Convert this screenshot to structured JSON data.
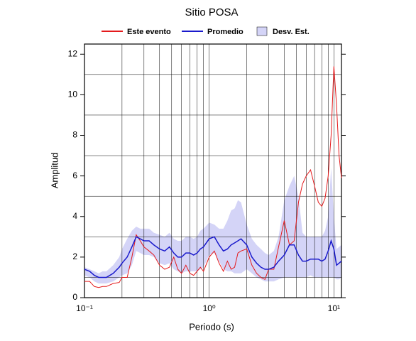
{
  "chart_data": {
    "type": "line",
    "title": "Sitio POSA",
    "xlabel": "Periodo (s)",
    "ylabel": "Amplitud",
    "xscale": "log",
    "xlim": [
      0.1,
      11.5
    ],
    "ylim": [
      0,
      12.5
    ],
    "xticks": [
      {
        "value": 0.1,
        "label": "10⁻¹"
      },
      {
        "value": 1,
        "label": "10⁰"
      },
      {
        "value": 10,
        "label": "10¹"
      }
    ],
    "minor_xticks": [
      0.2,
      0.3,
      0.4,
      0.5,
      0.6,
      0.7,
      0.8,
      0.9,
      2,
      3,
      4,
      5,
      6,
      7,
      8,
      9
    ],
    "yticks": [
      0,
      2,
      4,
      6,
      8,
      10,
      12
    ],
    "minor_yticks": [
      1,
      3,
      5,
      7,
      9,
      11
    ],
    "grid": true,
    "legend": "top",
    "x": [
      0.1,
      0.11,
      0.12,
      0.13,
      0.14,
      0.15,
      0.17,
      0.19,
      0.2,
      0.22,
      0.24,
      0.26,
      0.28,
      0.3,
      0.33,
      0.36,
      0.4,
      0.44,
      0.48,
      0.52,
      0.56,
      0.6,
      0.65,
      0.7,
      0.75,
      0.8,
      0.85,
      0.9,
      1.0,
      1.1,
      1.2,
      1.3,
      1.4,
      1.5,
      1.6,
      1.7,
      1.8,
      2.0,
      2.2,
      2.4,
      2.6,
      2.8,
      3.0,
      3.3,
      3.6,
      4.0,
      4.4,
      4.8,
      5.2,
      5.6,
      6.0,
      6.5,
      7.0,
      7.5,
      8.0,
      8.5,
      9.0,
      9.5,
      10.0,
      10.5,
      11.0,
      11.5
    ],
    "series": [
      {
        "name": "Este evento",
        "color": "#e41a1c",
        "values": [
          0.8,
          0.8,
          0.55,
          0.5,
          0.55,
          0.55,
          0.7,
          0.75,
          1.0,
          1.0,
          2.0,
          3.1,
          2.8,
          2.5,
          2.3,
          2.1,
          1.6,
          1.4,
          1.5,
          2.0,
          1.4,
          1.2,
          1.6,
          1.2,
          1.1,
          1.3,
          1.5,
          1.3,
          2.0,
          2.3,
          1.7,
          1.3,
          1.8,
          1.4,
          1.5,
          2.2,
          2.3,
          2.4,
          1.6,
          1.2,
          1.0,
          0.9,
          1.4,
          1.4,
          2.5,
          3.8,
          2.6,
          2.8,
          4.7,
          5.6,
          6.0,
          6.3,
          5.5,
          4.7,
          4.5,
          4.9,
          6.0,
          8.0,
          11.4,
          9.5,
          7.0,
          5.9
        ]
      },
      {
        "name": "Promedio",
        "color": "#1a1acc",
        "values": [
          1.4,
          1.3,
          1.1,
          1.0,
          1.0,
          1.0,
          1.2,
          1.5,
          1.7,
          2.0,
          2.5,
          3.0,
          2.9,
          2.8,
          2.8,
          2.6,
          2.4,
          2.3,
          2.5,
          2.2,
          2.0,
          2.0,
          2.2,
          2.2,
          2.1,
          2.2,
          2.4,
          2.5,
          2.9,
          3.0,
          2.6,
          2.3,
          2.4,
          2.6,
          2.7,
          2.8,
          2.9,
          2.6,
          2.0,
          1.7,
          1.5,
          1.4,
          1.4,
          1.5,
          1.8,
          2.1,
          2.6,
          2.6,
          2.1,
          1.8,
          1.8,
          1.9,
          1.9,
          1.9,
          1.8,
          1.9,
          2.3,
          2.8,
          2.4,
          1.6,
          1.7,
          1.8
        ]
      },
      {
        "name": "Desv. Est.",
        "color": "#d4d4f7",
        "upper": [
          1.5,
          1.4,
          1.3,
          1.2,
          1.3,
          1.3,
          1.6,
          2.0,
          2.4,
          2.9,
          3.3,
          3.5,
          3.4,
          3.4,
          3.4,
          3.2,
          3.1,
          3.0,
          3.2,
          2.9,
          2.8,
          2.8,
          3.0,
          3.0,
          2.9,
          3.0,
          3.3,
          3.4,
          3.7,
          3.6,
          3.4,
          3.4,
          3.8,
          4.3,
          4.4,
          4.8,
          4.7,
          3.6,
          2.9,
          2.6,
          2.4,
          2.2,
          2.1,
          2.3,
          3.0,
          4.8,
          5.5,
          6.0,
          5.0,
          3.2,
          3.0,
          3.0,
          3.0,
          3.0,
          3.0,
          3.3,
          4.0,
          6.4,
          4.0,
          2.4,
          2.5,
          2.6
        ],
        "lower": [
          1.1,
          1.0,
          0.8,
          0.7,
          0.7,
          0.7,
          0.8,
          1.0,
          1.1,
          1.2,
          1.6,
          2.3,
          2.2,
          2.1,
          2.1,
          2.0,
          1.7,
          1.6,
          1.7,
          1.4,
          1.3,
          1.2,
          1.3,
          1.3,
          1.3,
          1.3,
          1.4,
          1.5,
          2.1,
          2.2,
          1.8,
          1.4,
          1.3,
          1.3,
          1.2,
          1.2,
          1.2,
          1.4,
          1.2,
          1.0,
          0.9,
          0.8,
          0.8,
          0.8,
          0.9,
          1.0,
          1.0,
          1.0,
          1.0,
          1.0,
          1.0,
          1.1,
          1.0,
          1.0,
          1.0,
          1.0,
          1.0,
          1.0,
          1.0,
          0.9,
          0.9,
          1.0
        ]
      }
    ]
  }
}
